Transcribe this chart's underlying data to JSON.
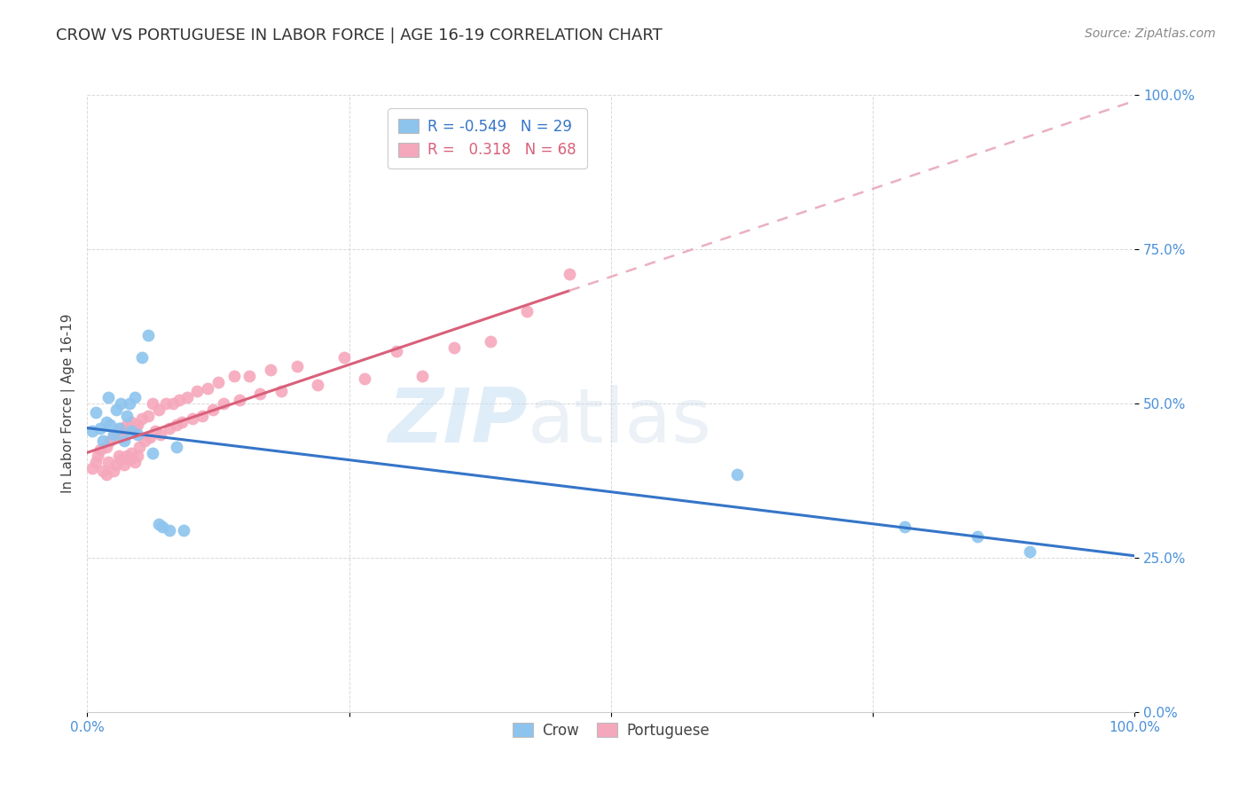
{
  "title": "CROW VS PORTUGUESE IN LABOR FORCE | AGE 16-19 CORRELATION CHART",
  "source": "Source: ZipAtlas.com",
  "ylabel": "In Labor Force | Age 16-19",
  "xlim": [
    0.0,
    1.0
  ],
  "ylim": [
    0.0,
    1.0
  ],
  "xtick_positions": [
    0.0,
    0.25,
    0.5,
    0.75,
    1.0
  ],
  "ytick_positions": [
    0.0,
    0.25,
    0.5,
    0.75,
    1.0
  ],
  "xticklabels": [
    "0.0%",
    "",
    "",
    "",
    "100.0%"
  ],
  "yticklabels": [
    "0.0%",
    "25.0%",
    "50.0%",
    "75.0%",
    "100.0%"
  ],
  "crow_color": "#8DC4EE",
  "portuguese_color": "#F5A8BC",
  "crow_line_color": "#3575C8",
  "portuguese_line_solid_color": "#D9607A",
  "portuguese_line_dashed_color": "#EAB0BF",
  "background_color": "#ffffff",
  "grid_color": "#d0d0d0",
  "crow_R": -0.549,
  "crow_N": 29,
  "portuguese_R": 0.318,
  "portuguese_N": 68,
  "crow_x": [
    0.005,
    0.008,
    0.012,
    0.015,
    0.018,
    0.02,
    0.022,
    0.025,
    0.028,
    0.03,
    0.032,
    0.035,
    0.038,
    0.04,
    0.042,
    0.045,
    0.048,
    0.052,
    0.058,
    0.062,
    0.068,
    0.072,
    0.078,
    0.085,
    0.092,
    0.62,
    0.78,
    0.85,
    0.9
  ],
  "crow_y": [
    0.455,
    0.485,
    0.46,
    0.44,
    0.47,
    0.51,
    0.465,
    0.45,
    0.49,
    0.46,
    0.5,
    0.44,
    0.48,
    0.5,
    0.455,
    0.51,
    0.45,
    0.575,
    0.61,
    0.42,
    0.305,
    0.3,
    0.295,
    0.43,
    0.295,
    0.385,
    0.3,
    0.285,
    0.26
  ],
  "portuguese_x": [
    0.005,
    0.008,
    0.01,
    0.012,
    0.015,
    0.018,
    0.018,
    0.02,
    0.022,
    0.025,
    0.025,
    0.028,
    0.028,
    0.03,
    0.03,
    0.032,
    0.032,
    0.035,
    0.035,
    0.038,
    0.038,
    0.04,
    0.04,
    0.042,
    0.042,
    0.045,
    0.045,
    0.048,
    0.048,
    0.05,
    0.052,
    0.055,
    0.058,
    0.06,
    0.062,
    0.065,
    0.068,
    0.07,
    0.075,
    0.078,
    0.082,
    0.085,
    0.088,
    0.09,
    0.095,
    0.1,
    0.105,
    0.11,
    0.115,
    0.12,
    0.125,
    0.13,
    0.14,
    0.145,
    0.155,
    0.165,
    0.175,
    0.185,
    0.2,
    0.22,
    0.245,
    0.265,
    0.295,
    0.32,
    0.35,
    0.385,
    0.42,
    0.46
  ],
  "portuguese_y": [
    0.395,
    0.405,
    0.415,
    0.425,
    0.39,
    0.385,
    0.43,
    0.405,
    0.44,
    0.39,
    0.445,
    0.4,
    0.45,
    0.415,
    0.455,
    0.41,
    0.46,
    0.4,
    0.455,
    0.415,
    0.465,
    0.41,
    0.46,
    0.42,
    0.47,
    0.405,
    0.46,
    0.415,
    0.465,
    0.43,
    0.475,
    0.44,
    0.48,
    0.445,
    0.5,
    0.455,
    0.49,
    0.45,
    0.5,
    0.46,
    0.5,
    0.465,
    0.505,
    0.47,
    0.51,
    0.475,
    0.52,
    0.48,
    0.525,
    0.49,
    0.535,
    0.5,
    0.545,
    0.505,
    0.545,
    0.515,
    0.555,
    0.52,
    0.56,
    0.53,
    0.575,
    0.54,
    0.585,
    0.545,
    0.59,
    0.6,
    0.65,
    0.71
  ],
  "watermark_zip": "ZIP",
  "watermark_atlas": "atlas",
  "title_fontsize": 13,
  "axis_label_fontsize": 11,
  "tick_fontsize": 11,
  "legend_fontsize": 12,
  "source_fontsize": 10
}
